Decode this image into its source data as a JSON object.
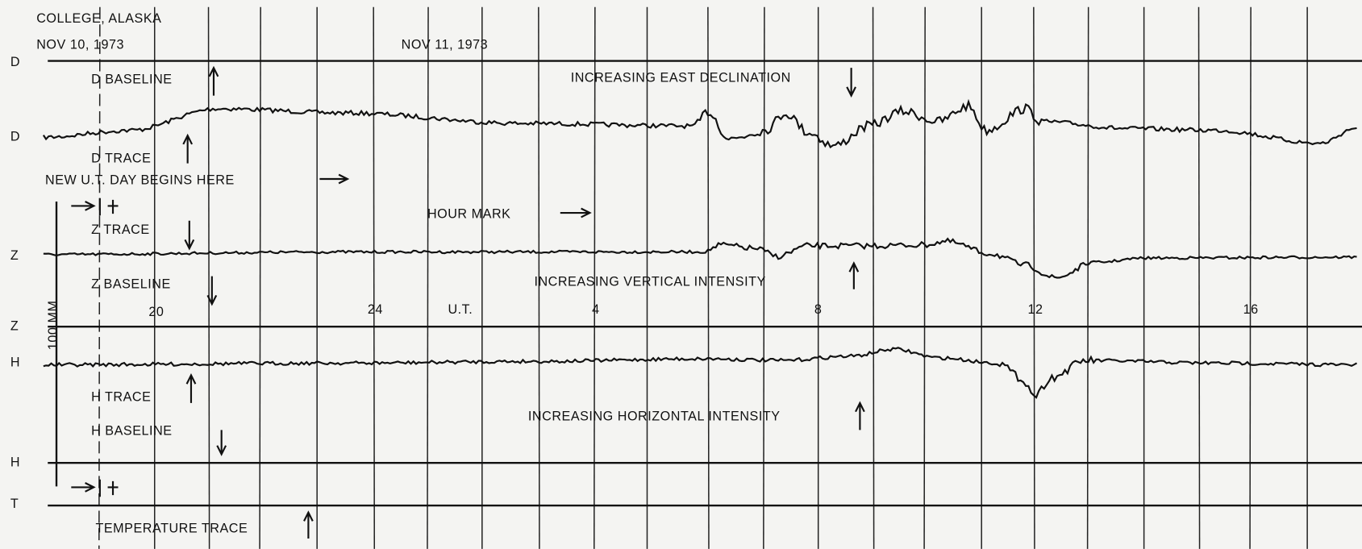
{
  "header": {
    "station": "COLLEGE, ALASKA",
    "date_start": "NOV 10, 1973",
    "date_next": "NOV 11, 1973"
  },
  "row_labels": [
    "D",
    "D",
    "Z",
    "Z",
    "H",
    "H",
    "T"
  ],
  "annotations": {
    "d_baseline": "D BASELINE",
    "east_declination": "INCREASING EAST DECLINATION",
    "d_trace": "D TRACE",
    "new_day": "NEW U.T. DAY BEGINS HERE",
    "hour_mark": "HOUR MARK",
    "z_trace": "Z TRACE",
    "z_baseline": "Z BASELINE",
    "vertical_intensity": "INCREASING VERTICAL INTENSITY",
    "h_trace": "H TRACE",
    "h_baseline": "H BASELINE",
    "horizontal_intensity": "INCREASING HORIZONTAL INTENSITY",
    "temperature_trace": "TEMPERATURE TRACE"
  },
  "scale_label": "100 MM.",
  "hour_labels": [
    "20",
    "24",
    "U.T.",
    "4",
    "8",
    "12",
    "16"
  ]
}
